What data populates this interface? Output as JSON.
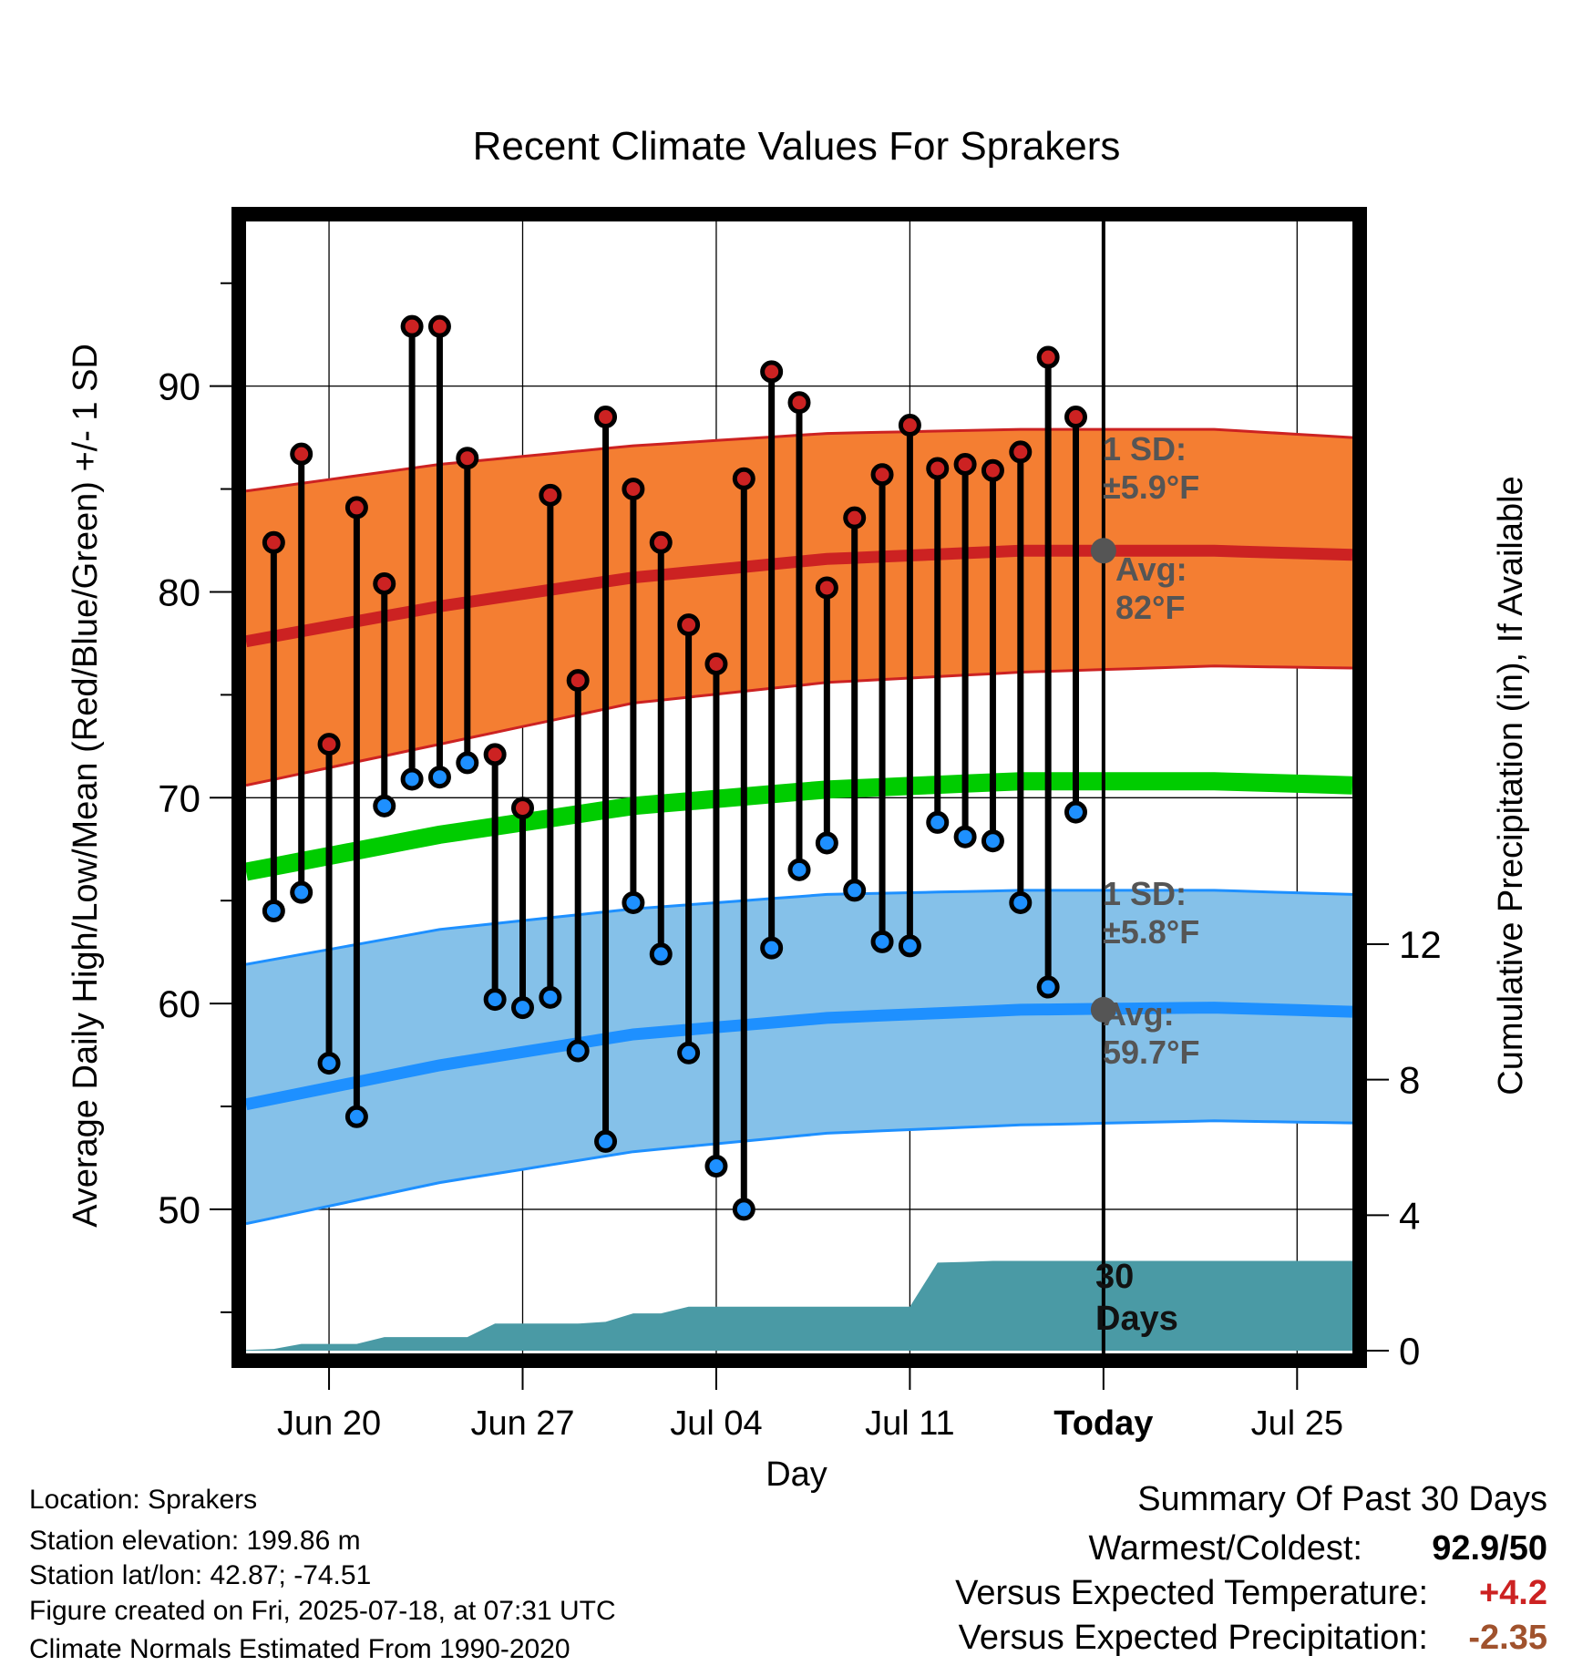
{
  "chart_data": {
    "type": "line",
    "title": "Recent Climate Values For Sprakers",
    "xlabel": "Day",
    "ylabel": "Average Daily High/Low/Mean (Red/Blue/Green) +/- 1 SD",
    "y2label": "Cumulative Precipitation (in), If Available",
    "x_tick_labels": [
      "Jun 20",
      "Jun 27",
      "Jul 04",
      "Jul 11",
      "Today",
      "Jul 25"
    ],
    "x_tick_days": [
      "2025-06-20",
      "2025-06-27",
      "2025-07-04",
      "2025-07-11",
      "2025-07-18",
      "2025-07-25"
    ],
    "xlim": [
      "2025-06-17",
      "2025-07-27"
    ],
    "ylim": [
      43,
      98
    ],
    "y_ticks": [
      50,
      60,
      70,
      80,
      90
    ],
    "y2lim": [
      0,
      30
    ],
    "y2_ticks": [
      0,
      4,
      8,
      12
    ],
    "grid": true,
    "dates": [
      "2025-06-18",
      "2025-06-19",
      "2025-06-20",
      "2025-06-21",
      "2025-06-22",
      "2025-06-23",
      "2025-06-24",
      "2025-06-25",
      "2025-06-26",
      "2025-06-27",
      "2025-06-28",
      "2025-06-29",
      "2025-06-30",
      "2025-07-01",
      "2025-07-02",
      "2025-07-03",
      "2025-07-04",
      "2025-07-05",
      "2025-07-06",
      "2025-07-07",
      "2025-07-08",
      "2025-07-09",
      "2025-07-10",
      "2025-07-11",
      "2025-07-12",
      "2025-07-13",
      "2025-07-14",
      "2025-07-15",
      "2025-07-16",
      "2025-07-17"
    ],
    "series": [
      {
        "name": "High",
        "color": "#cc2222",
        "values": [
          82.4,
          86.7,
          72.6,
          84.1,
          80.4,
          92.9,
          92.9,
          86.5,
          72.1,
          69.5,
          84.7,
          75.7,
          88.5,
          85.0,
          82.4,
          78.4,
          76.5,
          85.5,
          90.7,
          89.2,
          80.2,
          83.6,
          85.7,
          88.1,
          86.0,
          86.2,
          85.9,
          86.8,
          91.4,
          88.5
        ]
      },
      {
        "name": "Low",
        "color": "#1e90ff",
        "values": [
          64.5,
          65.4,
          57.1,
          54.5,
          69.6,
          70.9,
          71.0,
          71.7,
          60.2,
          59.8,
          60.3,
          57.7,
          53.3,
          64.9,
          62.4,
          57.6,
          52.1,
          50.0,
          62.7,
          66.5,
          67.8,
          65.5,
          63.0,
          62.8,
          68.8,
          68.1,
          67.9,
          64.9,
          60.8,
          69.3
        ]
      }
    ],
    "normals": {
      "dates": [
        "2025-06-17",
        "2025-06-24",
        "2025-07-01",
        "2025-07-08",
        "2025-07-15",
        "2025-07-22",
        "2025-07-27"
      ],
      "avg_high": [
        77.6,
        79.3,
        80.7,
        81.6,
        82.0,
        82.0,
        81.8
      ],
      "avg_high_sd_upper": [
        84.9,
        86.2,
        87.1,
        87.7,
        87.9,
        87.9,
        87.5
      ],
      "avg_high_sd_lower": [
        70.6,
        72.6,
        74.6,
        75.6,
        76.1,
        76.4,
        76.3
      ],
      "avg_mean": [
        66.4,
        68.2,
        69.6,
        70.4,
        70.8,
        70.8,
        70.6
      ],
      "avg_low": [
        55.1,
        57.0,
        58.5,
        59.3,
        59.7,
        59.8,
        59.6
      ],
      "avg_low_sd_upper": [
        61.9,
        63.6,
        64.6,
        65.3,
        65.5,
        65.5,
        65.3
      ],
      "avg_low_sd_lower": [
        49.3,
        51.3,
        52.8,
        53.7,
        54.1,
        54.3,
        54.2
      ]
    },
    "precip_cumulative": {
      "color": "#4a9aa5",
      "dates": [
        "2025-06-17",
        "2025-06-18",
        "2025-06-19",
        "2025-06-20",
        "2025-06-21",
        "2025-06-22",
        "2025-06-23",
        "2025-06-24",
        "2025-06-25",
        "2025-06-26",
        "2025-06-27",
        "2025-06-28",
        "2025-06-29",
        "2025-06-30",
        "2025-07-01",
        "2025-07-02",
        "2025-07-03",
        "2025-07-04",
        "2025-07-05",
        "2025-07-06",
        "2025-07-07",
        "2025-07-08",
        "2025-07-09",
        "2025-07-10",
        "2025-07-11",
        "2025-07-12",
        "2025-07-13",
        "2025-07-14",
        "2025-07-15",
        "2025-07-16",
        "2025-07-17",
        "2025-07-27"
      ],
      "values": [
        0.02,
        0.05,
        0.2,
        0.2,
        0.2,
        0.4,
        0.4,
        0.4,
        0.4,
        0.8,
        0.8,
        0.8,
        0.8,
        0.85,
        1.1,
        1.1,
        1.3,
        1.3,
        1.3,
        1.3,
        1.3,
        1.3,
        1.3,
        1.3,
        1.3,
        2.6,
        2.62,
        2.65,
        2.65,
        2.65,
        2.65,
        2.65
      ]
    },
    "annotations": {
      "high_sd": "1 SD:\n±5.9°F",
      "high_avg": "Avg:\n82°F",
      "low_sd": "1 SD:\n±5.8°F",
      "low_avg": "Avg:\n59.7°F",
      "window": "30\nDays"
    }
  },
  "footer": {
    "location": "Location: Sprakers",
    "elevation": "Station elevation: 199.86 m",
    "latlon": "Station lat/lon: 42.87; -74.51",
    "created": "Figure created on Fri, 2025-07-18, at 07:31 UTC",
    "normals": "Climate Normals Estimated From 1990-2020"
  },
  "summary": {
    "title": "Summary Of Past 30 Days",
    "warmest_label": "Warmest/Coldest:",
    "warmest_value": "92.9/50",
    "temp_label": "Versus Expected Temperature:",
    "temp_value": "+4.2",
    "temp_color": "#cc2222",
    "precip_label": "Versus Expected Precipitation:",
    "precip_value": "-2.35",
    "precip_color": "#a0522d"
  }
}
